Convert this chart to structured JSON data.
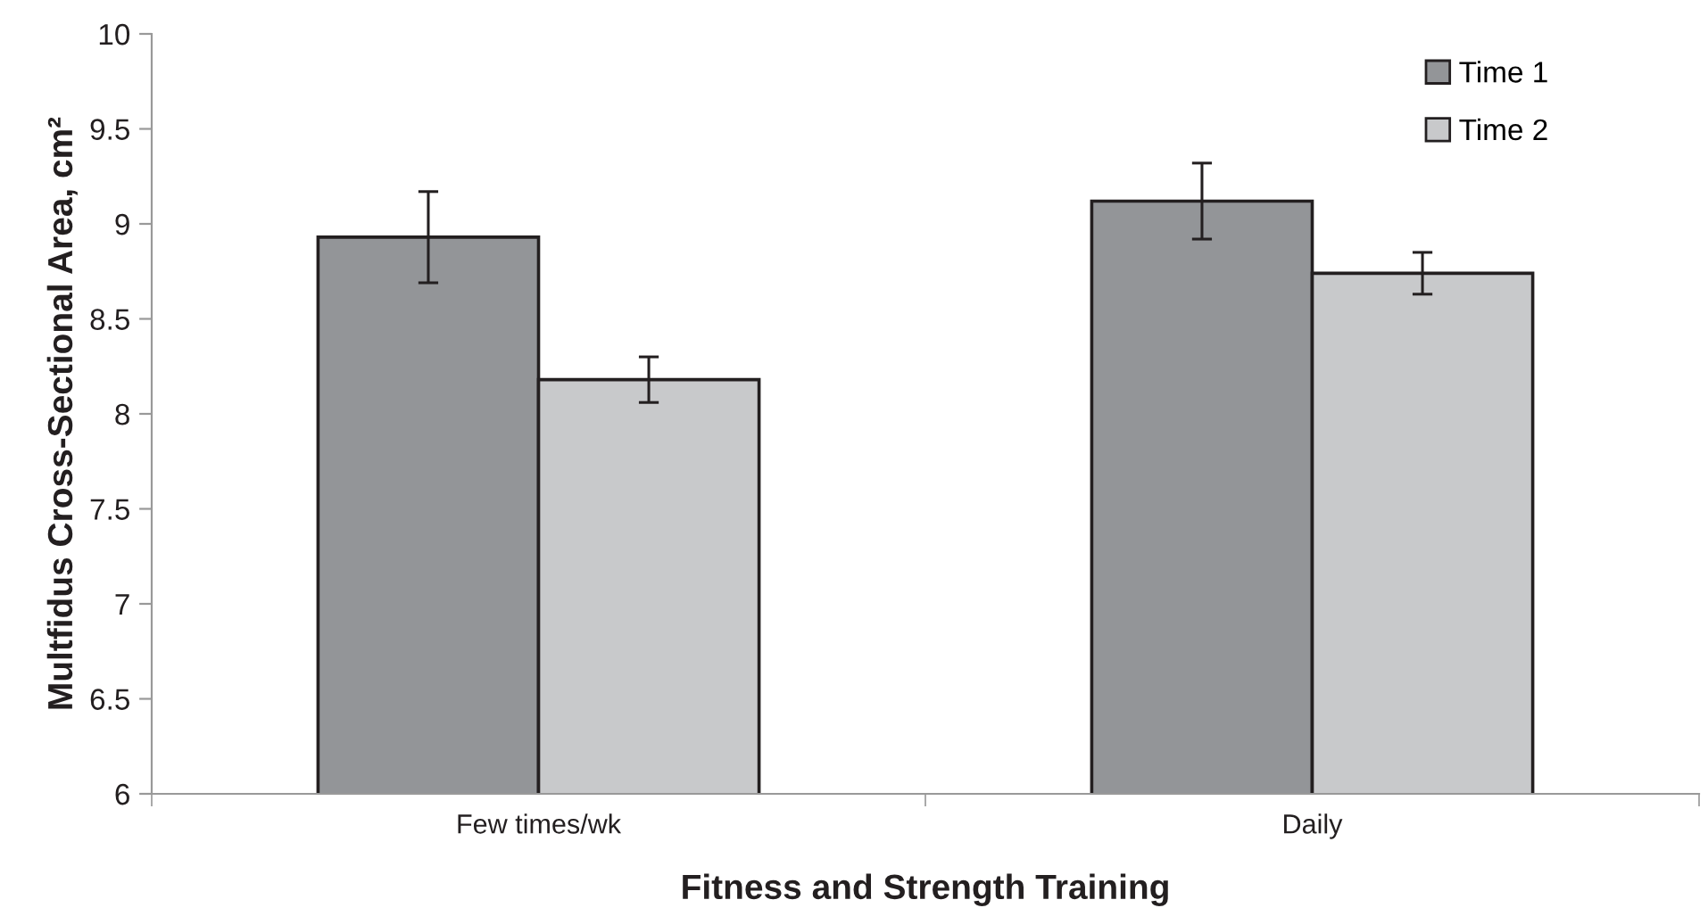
{
  "chart_data": {
    "type": "bar",
    "xlabel": "Fitness and Strength Training",
    "ylabel": "Multfidus Cross-Sectional Area, cm²",
    "categories": [
      "Few times/wk",
      "Daily"
    ],
    "series": [
      {
        "name": "Time 1",
        "color": "#939598",
        "values": [
          8.93,
          9.12
        ],
        "errors": [
          0.24,
          0.2
        ]
      },
      {
        "name": "Time 2",
        "color": "#c8c9cb",
        "values": [
          8.18,
          8.74
        ],
        "errors": [
          0.12,
          0.11
        ]
      }
    ],
    "ylim": [
      6,
      10
    ],
    "yticks": [
      6,
      6.5,
      7,
      7.5,
      8,
      8.5,
      9,
      9.5,
      10
    ],
    "grid": false,
    "legend": "top right"
  }
}
